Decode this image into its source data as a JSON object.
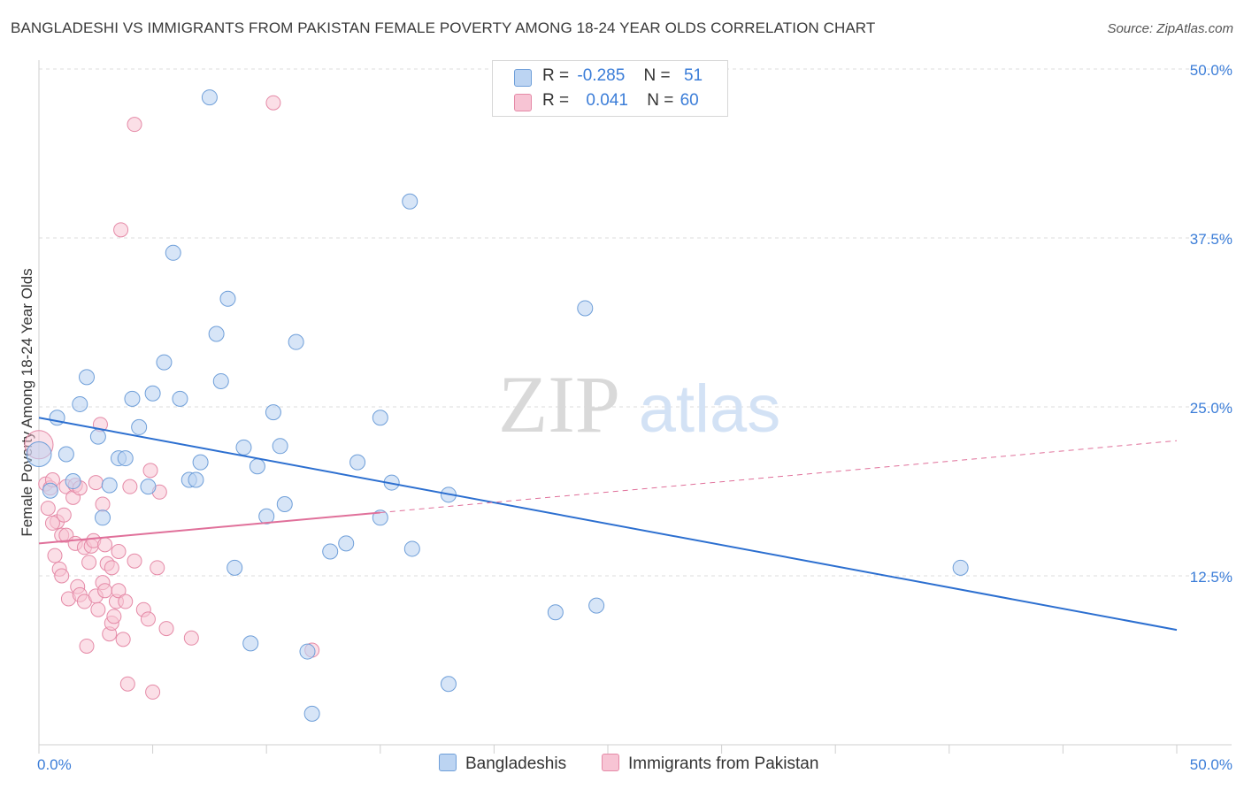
{
  "chart_data": {
    "type": "scatter",
    "title": "BANGLADESHI VS IMMIGRANTS FROM PAKISTAN FEMALE POVERTY AMONG 18-24 YEAR OLDS CORRELATION CHART",
    "source": "Source: ZipAtlas.com",
    "ylabel": "Female Poverty Among 18-24 Year Olds",
    "xlim": [
      0,
      50
    ],
    "ylim": [
      0,
      50
    ],
    "x_tick_labels": [
      "0.0%",
      "50.0%"
    ],
    "y_ticks": [
      12.5,
      25.0,
      37.5,
      50.0
    ],
    "y_tick_labels": [
      "12.5%",
      "25.0%",
      "37.5%",
      "50.0%"
    ],
    "grid": true,
    "watermark": {
      "zip": "ZIP",
      "atlas": "atlas"
    },
    "colors": {
      "bangladeshi_fill": "#bcd4f2",
      "bangladeshi_stroke": "#6f9fd9",
      "bangladeshi_line": "#2c6fd0",
      "pakistan_fill": "#f7c4d4",
      "pakistan_stroke": "#e58aa7",
      "pakistan_line": "#e0709a",
      "axis_tick": "#3b7dd8"
    },
    "legend": {
      "rows": [
        {
          "r_label": "R =",
          "r_value": "-0.285",
          "n_label": "N =",
          "n_value": "51"
        },
        {
          "r_label": "R =",
          "r_value": "0.041",
          "n_label": "N =",
          "n_value": "60"
        }
      ]
    },
    "series": [
      {
        "name": "Bangladeshis",
        "trend": {
          "x": [
            0,
            50
          ],
          "y": [
            24.2,
            8.5
          ],
          "dashed_from": null
        },
        "points": [
          [
            0.0,
            21.5
          ],
          [
            0.5,
            18.8
          ],
          [
            0.8,
            24.2
          ],
          [
            1.2,
            21.5
          ],
          [
            1.5,
            19.5
          ],
          [
            1.8,
            25.2
          ],
          [
            2.1,
            27.2
          ],
          [
            2.6,
            22.8
          ],
          [
            2.8,
            16.8
          ],
          [
            3.1,
            19.2
          ],
          [
            3.5,
            21.2
          ],
          [
            3.8,
            21.2
          ],
          [
            4.1,
            25.6
          ],
          [
            4.4,
            23.5
          ],
          [
            4.8,
            19.1
          ],
          [
            5.0,
            26.0
          ],
          [
            5.5,
            28.3
          ],
          [
            5.9,
            36.4
          ],
          [
            6.2,
            25.6
          ],
          [
            6.6,
            19.6
          ],
          [
            6.9,
            19.6
          ],
          [
            7.1,
            20.9
          ],
          [
            7.5,
            47.9
          ],
          [
            7.8,
            30.4
          ],
          [
            8.0,
            26.9
          ],
          [
            8.3,
            33.0
          ],
          [
            8.6,
            13.1
          ],
          [
            9.0,
            22.0
          ],
          [
            9.3,
            7.5
          ],
          [
            9.6,
            20.6
          ],
          [
            10.0,
            16.9
          ],
          [
            10.3,
            24.6
          ],
          [
            10.6,
            22.1
          ],
          [
            10.8,
            17.8
          ],
          [
            11.3,
            29.8
          ],
          [
            11.8,
            6.9
          ],
          [
            12.8,
            14.3
          ],
          [
            13.5,
            14.9
          ],
          [
            14.0,
            20.9
          ],
          [
            15.0,
            16.8
          ],
          [
            15.0,
            24.2
          ],
          [
            15.5,
            19.4
          ],
          [
            16.3,
            40.2
          ],
          [
            16.4,
            14.5
          ],
          [
            18.0,
            4.5
          ],
          [
            18.0,
            18.5
          ],
          [
            22.7,
            9.8
          ],
          [
            24.0,
            32.3
          ],
          [
            24.5,
            10.3
          ],
          [
            40.5,
            13.1
          ],
          [
            12.0,
            2.3
          ]
        ]
      },
      {
        "name": "Immigrants from Pakistan",
        "trend": {
          "x": [
            0,
            50
          ],
          "y": [
            14.9,
            22.5
          ],
          "dashed_from": 15.0
        },
        "points": [
          [
            0.0,
            22.2
          ],
          [
            0.3,
            19.3
          ],
          [
            0.4,
            17.5
          ],
          [
            0.5,
            19.0
          ],
          [
            0.6,
            19.6
          ],
          [
            0.7,
            14.0
          ],
          [
            0.8,
            16.5
          ],
          [
            0.9,
            13.0
          ],
          [
            1.0,
            15.5
          ],
          [
            1.0,
            12.5
          ],
          [
            1.1,
            17.0
          ],
          [
            1.2,
            19.1
          ],
          [
            1.2,
            15.5
          ],
          [
            1.3,
            10.8
          ],
          [
            1.5,
            18.3
          ],
          [
            1.6,
            19.2
          ],
          [
            1.6,
            14.9
          ],
          [
            1.7,
            11.7
          ],
          [
            1.8,
            11.1
          ],
          [
            2.0,
            14.6
          ],
          [
            2.0,
            10.6
          ],
          [
            2.1,
            7.3
          ],
          [
            2.2,
            13.5
          ],
          [
            2.3,
            14.7
          ],
          [
            2.4,
            15.1
          ],
          [
            2.5,
            19.4
          ],
          [
            2.5,
            11.0
          ],
          [
            2.6,
            10.0
          ],
          [
            2.7,
            23.7
          ],
          [
            2.8,
            17.8
          ],
          [
            2.8,
            12.0
          ],
          [
            2.9,
            11.4
          ],
          [
            3.0,
            13.4
          ],
          [
            3.1,
            8.2
          ],
          [
            3.2,
            13.1
          ],
          [
            3.2,
            9.0
          ],
          [
            3.3,
            9.5
          ],
          [
            3.4,
            10.6
          ],
          [
            3.5,
            11.4
          ],
          [
            3.5,
            14.3
          ],
          [
            3.6,
            38.1
          ],
          [
            3.7,
            7.8
          ],
          [
            3.8,
            10.6
          ],
          [
            3.9,
            4.5
          ],
          [
            4.0,
            19.1
          ],
          [
            4.2,
            13.6
          ],
          [
            4.2,
            45.9
          ],
          [
            4.6,
            10.0
          ],
          [
            4.8,
            9.3
          ],
          [
            4.9,
            20.3
          ],
          [
            5.0,
            3.9
          ],
          [
            5.2,
            13.1
          ],
          [
            5.3,
            18.7
          ],
          [
            5.6,
            8.6
          ],
          [
            6.7,
            7.9
          ],
          [
            10.3,
            47.5
          ],
          [
            12.0,
            7.0
          ],
          [
            1.8,
            19.0
          ],
          [
            0.6,
            16.4
          ],
          [
            2.9,
            14.8
          ]
        ]
      }
    ]
  }
}
